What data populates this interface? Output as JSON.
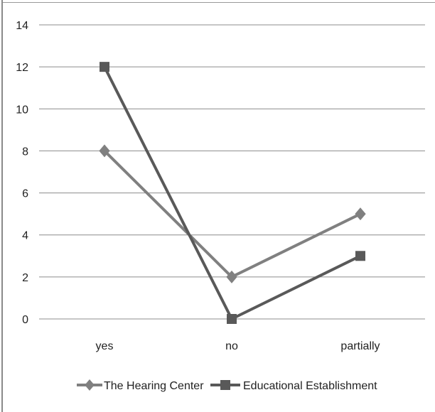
{
  "chart_data": {
    "type": "line",
    "categories": [
      "yes",
      "no",
      "partially"
    ],
    "series": [
      {
        "name": "The Hearing Center",
        "values": [
          8,
          2,
          5
        ],
        "color": "#808080",
        "marker": "diamond"
      },
      {
        "name": "Educational Establishment",
        "values": [
          12,
          0,
          3
        ],
        "color": "#595959",
        "marker": "square"
      }
    ],
    "ylim": [
      0,
      14
    ],
    "yticks": [
      0,
      2,
      4,
      6,
      8,
      10,
      12,
      14
    ],
    "grid": true,
    "legend": "bottom"
  }
}
